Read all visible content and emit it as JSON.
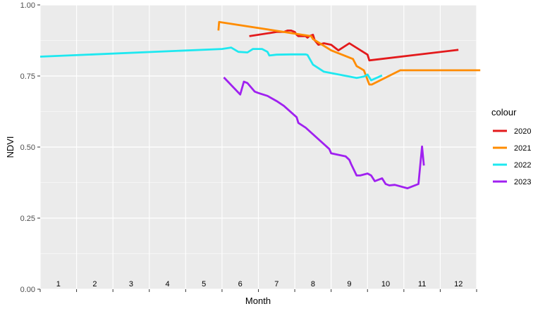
{
  "chart_data": {
    "type": "line",
    "xlabel": "Month",
    "ylabel": "NDVI",
    "ylim": [
      0,
      1
    ],
    "xlim": [
      0.5,
      12.5
    ],
    "y_ticks": [
      "0.00",
      "0.25",
      "0.50",
      "0.75",
      "1.00"
    ],
    "y_tick_values": [
      0,
      0.25,
      0.5,
      0.75,
      1.0
    ],
    "x_tick_labels": [
      "1",
      "2",
      "3",
      "4",
      "5",
      "6",
      "7",
      "8",
      "9",
      "10",
      "11",
      "12"
    ],
    "grid": true,
    "legend": {
      "title": "colour",
      "position": "right"
    },
    "panel_background": "#ebebeb",
    "grid_color": "#ffffff",
    "series": [
      {
        "name": "2020",
        "color": "#e31a1c",
        "x": [
          6.25,
          7.0,
          7.2,
          7.3,
          7.4,
          7.5,
          7.55,
          7.6,
          7.8,
          7.85,
          7.9,
          8.0,
          8.05,
          8.15,
          8.3,
          8.5,
          8.7,
          9.0,
          9.5,
          9.55,
          12.0
        ],
        "y": [
          0.89,
          0.905,
          0.905,
          0.91,
          0.91,
          0.905,
          0.895,
          0.89,
          0.89,
          0.885,
          0.89,
          0.895,
          0.875,
          0.86,
          0.865,
          0.86,
          0.84,
          0.865,
          0.825,
          0.805,
          0.842
        ]
      },
      {
        "name": "2021",
        "color": "#ff8c00",
        "x": [
          5.4,
          5.42,
          7.95,
          8.0,
          8.5,
          9.1,
          9.2,
          9.4,
          9.55,
          9.62,
          10.4,
          12.6
        ],
        "y": [
          0.91,
          0.94,
          0.89,
          0.88,
          0.84,
          0.81,
          0.785,
          0.77,
          0.72,
          0.72,
          0.77,
          0.77
        ]
      },
      {
        "name": "2022",
        "color": "#1ee8f0",
        "x": [
          0.5,
          5.5,
          5.75,
          5.95,
          6.2,
          6.35,
          6.45,
          6.6,
          6.75,
          6.8,
          7.0,
          7.4,
          7.8,
          7.85,
          8.0,
          8.3,
          9.2,
          9.4,
          9.5,
          9.6,
          9.9
        ],
        "y": [
          0.818,
          0.845,
          0.85,
          0.835,
          0.833,
          0.845,
          0.845,
          0.845,
          0.835,
          0.822,
          0.825,
          0.826,
          0.826,
          0.824,
          0.79,
          0.765,
          0.743,
          0.748,
          0.755,
          0.735,
          0.752
        ]
      },
      {
        "name": "2023",
        "color": "#a020f0",
        "x": [
          5.55,
          6.0,
          6.1,
          6.2,
          6.4,
          6.5,
          6.75,
          7.0,
          7.2,
          7.55,
          7.6,
          7.8,
          8.45,
          8.5,
          8.9,
          9.0,
          9.05,
          9.2,
          9.3,
          9.5,
          9.6,
          9.7,
          9.9,
          10.0,
          10.1,
          10.25,
          10.6,
          10.9,
          11.0,
          11.05
        ],
        "y": [
          0.745,
          0.685,
          0.73,
          0.725,
          0.695,
          0.69,
          0.68,
          0.662,
          0.645,
          0.605,
          0.585,
          0.568,
          0.493,
          0.478,
          0.467,
          0.455,
          0.44,
          0.4,
          0.4,
          0.407,
          0.4,
          0.38,
          0.39,
          0.37,
          0.365,
          0.367,
          0.355,
          0.37,
          0.502,
          0.435
        ]
      }
    ]
  }
}
